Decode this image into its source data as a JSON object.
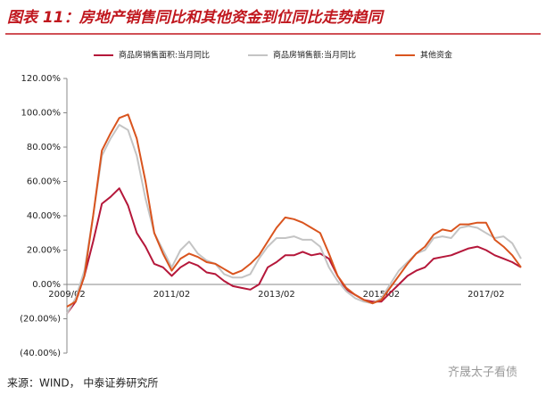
{
  "chart_data": {
    "type": "line",
    "title": "图表 11：房地产销售同比和其他资金到位同比走势趋同",
    "source": "来源：WIND，  中泰证券研究所",
    "watermark": "齐晟太子看债",
    "categories": [
      "2009/02",
      null,
      null,
      null,
      null,
      null,
      null,
      null,
      null,
      null,
      null,
      null,
      "2011/02",
      null,
      null,
      null,
      null,
      null,
      null,
      null,
      null,
      null,
      null,
      null,
      "2013/02",
      null,
      null,
      null,
      null,
      null,
      null,
      null,
      null,
      null,
      null,
      null,
      "2015/02",
      null,
      null,
      null,
      null,
      null,
      null,
      null,
      null,
      null,
      null,
      null,
      "2017/02",
      null,
      null,
      null,
      null
    ],
    "series": [
      {
        "name": "商品房销售面积:当月同比",
        "color": "#b5173a",
        "values": [
          -17,
          -10,
          5,
          25,
          47,
          51,
          56,
          46,
          30,
          22,
          12,
          10,
          5,
          10,
          13,
          11,
          7,
          6,
          2,
          -1,
          -2,
          -3,
          0,
          10,
          13,
          17,
          17,
          19,
          17,
          18,
          15,
          5,
          -3,
          -6,
          -9,
          -10,
          -10,
          -5,
          0,
          5,
          8,
          10,
          15,
          16,
          17,
          19,
          21,
          22,
          20,
          17,
          15,
          13,
          10
        ]
      },
      {
        "name": "商品房销售额:当月同比",
        "color": "#c4c4c4",
        "values": [
          -17,
          -8,
          8,
          40,
          75,
          85,
          93,
          90,
          75,
          50,
          30,
          20,
          10,
          20,
          25,
          18,
          14,
          12,
          6,
          4,
          4,
          6,
          15,
          22,
          27,
          27,
          28,
          26,
          26,
          22,
          10,
          2,
          -4,
          -8,
          -10,
          -11,
          -8,
          0,
          8,
          13,
          18,
          20,
          27,
          28,
          27,
          33,
          34,
          33,
          30,
          27,
          28,
          24,
          15
        ]
      },
      {
        "name": "其他资金",
        "color": "#d9541e",
        "values": [
          -13,
          -10,
          5,
          40,
          78,
          88,
          97,
          99,
          85,
          60,
          30,
          18,
          8,
          15,
          18,
          16,
          13,
          12,
          9,
          6,
          8,
          12,
          17,
          25,
          33,
          39,
          38,
          36,
          33,
          30,
          18,
          5,
          -2,
          -6,
          -9,
          -11,
          -9,
          -2,
          5,
          12,
          18,
          22,
          29,
          32,
          31,
          35,
          35,
          36,
          36,
          26,
          22,
          17,
          10
        ]
      }
    ],
    "ylim": [
      -40,
      120
    ],
    "yticks": [
      {
        "value": -40,
        "label": "(40.00%)"
      },
      {
        "value": -20,
        "label": "(20.00%)"
      },
      {
        "value": 0,
        "label": "0.00%"
      },
      {
        "value": 20,
        "label": "20.00%"
      },
      {
        "value": 40,
        "label": "40.00%"
      },
      {
        "value": 60,
        "label": "60.00%"
      },
      {
        "value": 80,
        "label": "80.00%"
      },
      {
        "value": 100,
        "label": "100.00%"
      },
      {
        "value": 120,
        "label": "120.00%"
      }
    ],
    "legend": "top"
  }
}
